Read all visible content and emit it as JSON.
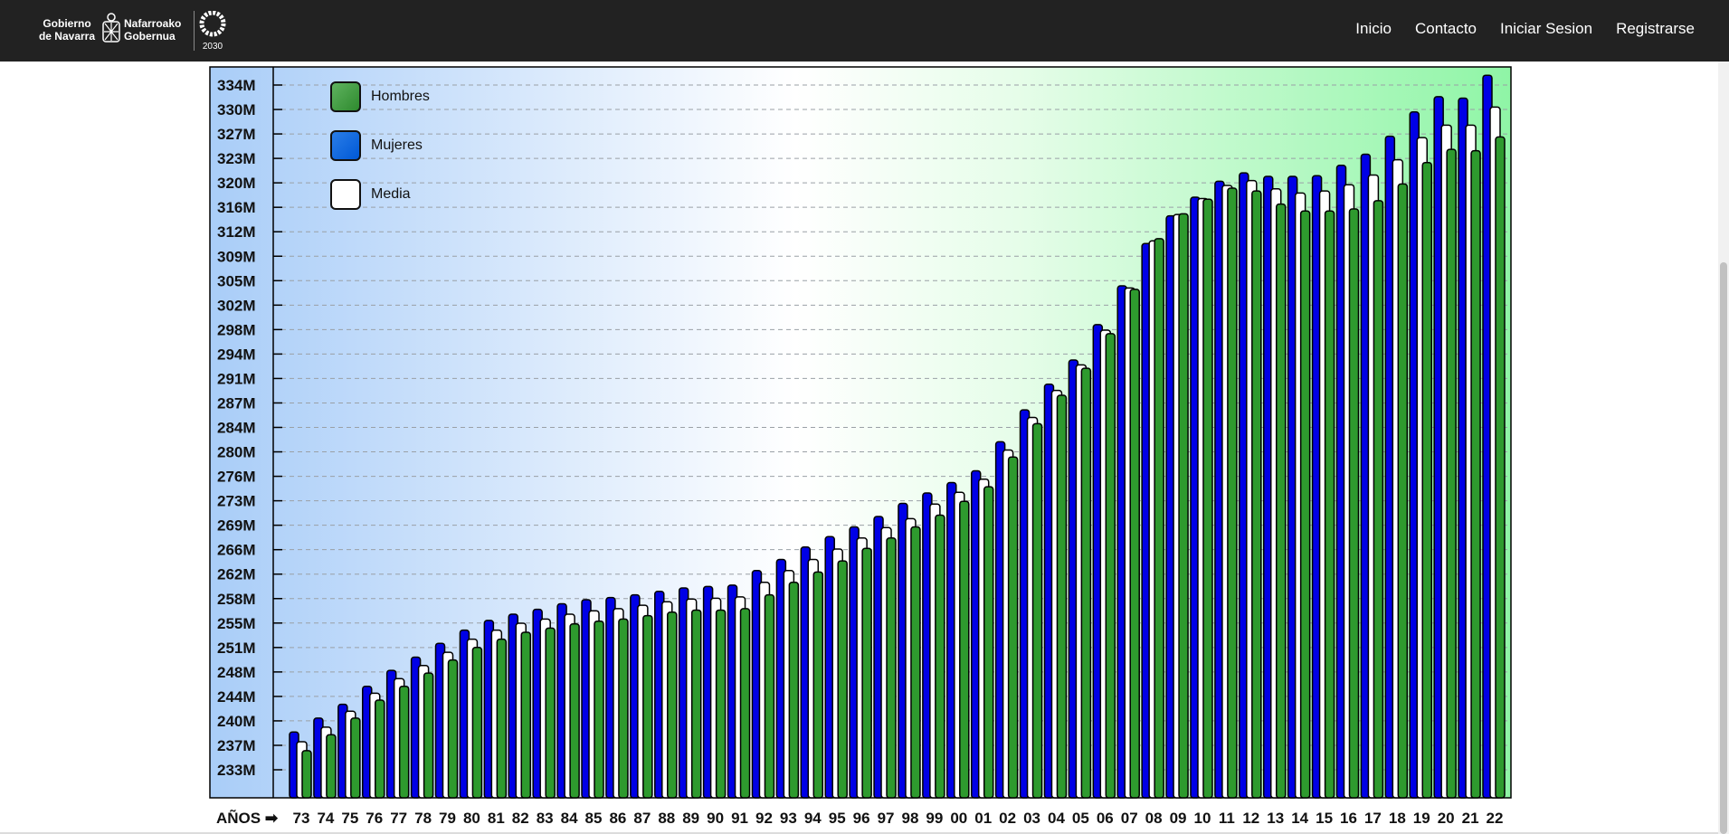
{
  "header": {
    "logo": {
      "text_left": [
        "Gobierno",
        "de Navarra"
      ],
      "text_right": [
        "Nafarroako",
        "Gobernua"
      ],
      "agenda_text": "2030"
    },
    "nav": [
      "Inicio",
      "Contacto",
      "Iniciar Sesion",
      "Registrarse"
    ]
  },
  "colors": {
    "topbar": "#222222",
    "mujeres": "#0000e6",
    "hombres": "#2e9a2e",
    "media": "#ffffff",
    "bg_left": "#a9cdf8",
    "bg_right": "#8ff5a6"
  },
  "legend": {
    "hombres": "Hombres",
    "mujeres": "Mujeres",
    "media": "Media"
  },
  "chart_data": {
    "type": "bar",
    "xlabel": "AÑOS ➡",
    "y_ticks": [
      "233M",
      "237M",
      "240M",
      "244M",
      "248M",
      "251M",
      "255M",
      "258M",
      "262M",
      "266M",
      "269M",
      "273M",
      "276M",
      "280M",
      "284M",
      "287M",
      "291M",
      "294M",
      "298M",
      "302M",
      "305M",
      "309M",
      "312M",
      "316M",
      "320M",
      "323M",
      "327M",
      "330M",
      "334M"
    ],
    "ylim": [
      230.5,
      336
    ],
    "grid": true,
    "legend_position": "top-left",
    "categories": [
      "73",
      "74",
      "75",
      "76",
      "77",
      "78",
      "79",
      "80",
      "81",
      "82",
      "83",
      "84",
      "85",
      "86",
      "87",
      "88",
      "89",
      "90",
      "91",
      "92",
      "93",
      "94",
      "95",
      "96",
      "97",
      "98",
      "99",
      "00",
      "01",
      "02",
      "03",
      "04",
      "05",
      "06",
      "07",
      "08",
      "09",
      "10",
      "11",
      "12",
      "13",
      "14",
      "15",
      "16",
      "17",
      "18",
      "19",
      "20",
      "21",
      "22"
    ],
    "series": [
      {
        "name": "Mujeres",
        "values": [
          240.0,
          242.0,
          244.0,
          246.6,
          248.9,
          250.8,
          252.8,
          254.7,
          256.1,
          257.0,
          257.7,
          258.5,
          259.1,
          259.4,
          259.8,
          260.3,
          260.8,
          261.0,
          261.2,
          263.3,
          264.9,
          266.7,
          268.2,
          269.6,
          271.1,
          273.0,
          274.5,
          276.0,
          277.7,
          281.9,
          286.5,
          290.2,
          293.7,
          298.8,
          304.4,
          310.5,
          314.5,
          317.2,
          319.5,
          320.7,
          320.2,
          320.2,
          320.3,
          321.8,
          323.4,
          326.0,
          329.5,
          331.7,
          331.5,
          334.8
        ]
      },
      {
        "name": "Media",
        "values": [
          238.6,
          240.7,
          243.0,
          245.6,
          247.7,
          249.6,
          251.5,
          253.4,
          254.7,
          255.7,
          256.3,
          257.0,
          257.5,
          257.8,
          258.3,
          258.8,
          259.2,
          259.3,
          259.5,
          261.6,
          263.3,
          264.9,
          266.4,
          268.0,
          269.5,
          270.8,
          272.9,
          274.6,
          276.5,
          280.7,
          285.4,
          289.3,
          293.0,
          298.0,
          304.1,
          310.9,
          314.7,
          317.0,
          318.9,
          319.6,
          318.4,
          317.8,
          318.1,
          319.0,
          320.4,
          322.6,
          325.8,
          327.6,
          327.6,
          330.2
        ]
      },
      {
        "name": "Hombres",
        "values": [
          237.3,
          239.6,
          242.0,
          244.6,
          246.6,
          248.5,
          250.4,
          252.2,
          253.4,
          254.4,
          255.0,
          255.6,
          256.0,
          256.3,
          256.8,
          257.3,
          257.6,
          257.6,
          257.8,
          259.8,
          261.6,
          263.1,
          264.7,
          266.5,
          268.0,
          269.6,
          271.3,
          273.3,
          275.4,
          279.7,
          284.5,
          288.6,
          292.5,
          297.5,
          303.9,
          311.2,
          314.8,
          316.9,
          318.5,
          318.1,
          316.2,
          315.2,
          315.2,
          315.5,
          316.7,
          319.1,
          322.2,
          324.1,
          323.9,
          325.9
        ]
      }
    ]
  }
}
